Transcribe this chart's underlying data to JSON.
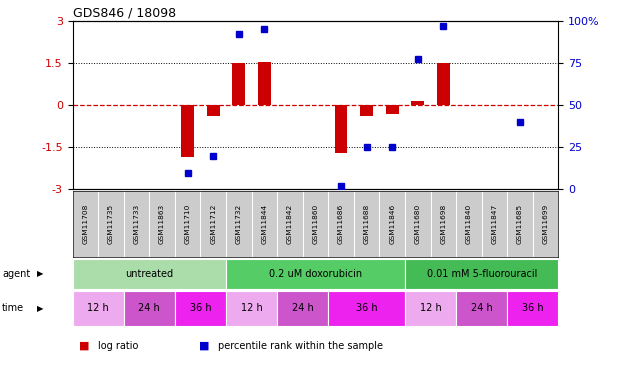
{
  "title": "GDS846 / 18098",
  "samples": [
    "GSM11708",
    "GSM11735",
    "GSM11733",
    "GSM11863",
    "GSM11710",
    "GSM11712",
    "GSM11732",
    "GSM11844",
    "GSM11842",
    "GSM11860",
    "GSM11686",
    "GSM11688",
    "GSM11846",
    "GSM11680",
    "GSM11698",
    "GSM11840",
    "GSM11847",
    "GSM11685",
    "GSM11699"
  ],
  "log_ratio": [
    0,
    0,
    0,
    0,
    -1.85,
    -0.38,
    1.5,
    1.52,
    0,
    0,
    -1.72,
    -0.38,
    -0.32,
    0.15,
    1.5,
    0,
    0,
    0,
    0
  ],
  "percentile_rank": [
    null,
    null,
    null,
    null,
    10,
    20,
    92,
    95,
    null,
    null,
    2,
    25,
    25,
    77,
    97,
    null,
    null,
    40,
    null
  ],
  "ylim": [
    -3,
    3
  ],
  "yticks_left": [
    -3,
    -1.5,
    0,
    1.5,
    3
  ],
  "yticks_right": [
    0,
    25,
    50,
    75,
    100
  ],
  "bar_color": "#cc0000",
  "dot_color": "#0000cc",
  "bar_width": 0.5,
  "agents": [
    {
      "label": "untreated",
      "start": 0,
      "end": 6,
      "color": "#aaddaa"
    },
    {
      "label": "0.2 uM doxorubicin",
      "start": 6,
      "end": 13,
      "color": "#55cc66"
    },
    {
      "label": "0.01 mM 5-fluorouracil",
      "start": 13,
      "end": 19,
      "color": "#44bb55"
    }
  ],
  "times": [
    {
      "label": "12 h",
      "start": 0,
      "end": 2,
      "color": "#eeaaee"
    },
    {
      "label": "24 h",
      "start": 2,
      "end": 4,
      "color": "#cc55cc"
    },
    {
      "label": "36 h",
      "start": 4,
      "end": 6,
      "color": "#ee22ee"
    },
    {
      "label": "12 h",
      "start": 6,
      "end": 8,
      "color": "#eeaaee"
    },
    {
      "label": "24 h",
      "start": 8,
      "end": 10,
      "color": "#cc55cc"
    },
    {
      "label": "36 h",
      "start": 10,
      "end": 13,
      "color": "#ee22ee"
    },
    {
      "label": "12 h",
      "start": 13,
      "end": 15,
      "color": "#eeaaee"
    },
    {
      "label": "24 h",
      "start": 15,
      "end": 17,
      "color": "#cc55cc"
    },
    {
      "label": "36 h",
      "start": 17,
      "end": 19,
      "color": "#ee22ee"
    }
  ]
}
